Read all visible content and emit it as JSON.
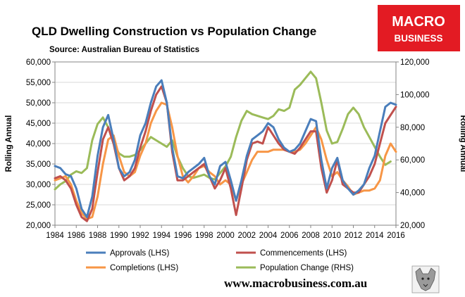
{
  "title": "QLD Dwelling Construction vs Population Change",
  "source": "Source: Australian Bureau of Statistics",
  "logo": {
    "line1": "MACRO",
    "line2": "BUSINESS",
    "color": "#e31b23"
  },
  "website": "www.macrobusiness.com.au",
  "mascot_icon": "wolf-icon",
  "chart_data": {
    "type": "line",
    "x_label": "",
    "x_ticks": [
      "1984",
      "1986",
      "1988",
      "1990",
      "1992",
      "1994",
      "1996",
      "1998",
      "2000",
      "2002",
      "2004",
      "2006",
      "2008",
      "2010",
      "2012",
      "2014",
      "2016"
    ],
    "xlim": [
      1984,
      2016
    ],
    "y_left": {
      "label": "Rolling Annual",
      "lim": [
        20000,
        60000
      ],
      "ticks": [
        "20,000",
        "25,000",
        "30,000",
        "35,000",
        "40,000",
        "45,000",
        "50,000",
        "55,000",
        "60,000"
      ]
    },
    "y_right": {
      "label": "Rolling Annual",
      "lim": [
        20000,
        120000
      ],
      "ticks": [
        "20,000",
        "40,000",
        "60,000",
        "80,000",
        "100,000",
        "120,000"
      ]
    },
    "grid": "horizontal",
    "legend_position": "bottom",
    "series": [
      {
        "name": "Approvals (LHS)",
        "axis": "left",
        "color": "#4a7ebb",
        "x": [
          1984,
          1984.5,
          1985,
          1985.5,
          1986,
          1986.5,
          1987,
          1987.5,
          1988,
          1988.5,
          1989,
          1989.5,
          1990,
          1990.5,
          1991,
          1991.5,
          1992,
          1992.5,
          1993,
          1993.5,
          1994,
          1994.5,
          1995,
          1995.5,
          1996,
          1996.5,
          1997,
          1997.5,
          1998,
          1998.5,
          1999,
          1999.5,
          2000,
          2000.5,
          2001,
          2001.5,
          2002,
          2002.5,
          2003,
          2003.5,
          2004,
          2004.5,
          2005,
          2005.5,
          2006,
          2006.5,
          2007,
          2007.5,
          2008,
          2008.5,
          2009,
          2009.5,
          2010,
          2010.5,
          2011,
          2011.5,
          2012,
          2012.5,
          2013,
          2013.5,
          2014,
          2014.5,
          2015,
          2015.5,
          2016
        ],
        "y": [
          34500,
          34000,
          32500,
          32000,
          29000,
          24000,
          22000,
          27000,
          37000,
          44000,
          47000,
          41000,
          34000,
          32000,
          33000,
          36000,
          42000,
          45000,
          50000,
          54000,
          55500,
          50000,
          39000,
          32000,
          31500,
          33000,
          34000,
          35000,
          36500,
          32000,
          30000,
          34500,
          35500,
          31000,
          26000,
          31000,
          37000,
          41000,
          42000,
          43000,
          45000,
          44000,
          41000,
          39000,
          38000,
          38500,
          40000,
          43000,
          46000,
          45500,
          36000,
          29000,
          34000,
          36500,
          31000,
          29000,
          27500,
          28500,
          30000,
          34000,
          37000,
          43000,
          49000,
          50000,
          49500
        ]
      },
      {
        "name": "Commencements (LHS)",
        "axis": "left",
        "color": "#c0504d",
        "x": [
          1984,
          1984.5,
          1985,
          1985.5,
          1986,
          1986.5,
          1987,
          1987.5,
          1988,
          1988.5,
          1989,
          1989.5,
          1990,
          1990.5,
          1991,
          1991.5,
          1992,
          1992.5,
          1993,
          1993.5,
          1994,
          1994.5,
          1995,
          1995.5,
          1996,
          1996.5,
          1997,
          1997.5,
          1998,
          1998.5,
          1999,
          1999.5,
          2000,
          2000.5,
          2001,
          2001.5,
          2002,
          2002.5,
          2003,
          2003.5,
          2004,
          2004.5,
          2005,
          2005.5,
          2006,
          2006.5,
          2007,
          2007.5,
          2008,
          2008.5,
          2009,
          2009.5,
          2010,
          2010.5,
          2011,
          2011.5,
          2012,
          2012.5,
          2013,
          2013.5,
          2014,
          2014.5,
          2015,
          2015.5,
          2016
        ],
        "y": [
          31500,
          32000,
          31000,
          29000,
          25000,
          22000,
          21000,
          24000,
          33000,
          41000,
          44000,
          40000,
          34000,
          31000,
          32000,
          34000,
          39000,
          43000,
          48000,
          52000,
          54000,
          50000,
          38000,
          31000,
          31000,
          32000,
          33000,
          34000,
          35000,
          32000,
          29000,
          31000,
          34000,
          29000,
          22500,
          29000,
          36000,
          40000,
          40500,
          40000,
          44000,
          42000,
          40000,
          38500,
          38000,
          37500,
          39000,
          41000,
          43000,
          43000,
          34000,
          28000,
          31000,
          36000,
          30000,
          29000,
          28000,
          28000,
          30000,
          32000,
          35000,
          40000,
          45000,
          47000,
          49000
        ]
      },
      {
        "name": "Completions (LHS)",
        "axis": "left",
        "color": "#f79646",
        "x": [
          1984,
          1984.5,
          1985,
          1985.5,
          1986,
          1986.5,
          1987,
          1987.5,
          1988,
          1988.5,
          1989,
          1989.5,
          1990,
          1990.5,
          1991,
          1991.5,
          1992,
          1992.5,
          1993,
          1993.5,
          1994,
          1994.5,
          1995,
          1995.5,
          1996,
          1996.5,
          1997,
          1997.5,
          1998,
          1998.5,
          1999,
          1999.5,
          2000,
          2000.5,
          2001,
          2001.5,
          2002,
          2002.5,
          2003,
          2003.5,
          2004,
          2004.5,
          2005,
          2005.5,
          2006,
          2006.5,
          2007,
          2007.5,
          2008,
          2008.5,
          2009,
          2009.5,
          2010,
          2010.5,
          2011,
          2011.5,
          2012,
          2012.5,
          2013,
          2013.5,
          2014,
          2014.5,
          2015,
          2015.5,
          2016
        ],
        "y": [
          31000,
          31500,
          32000,
          30000,
          26000,
          23000,
          21500,
          22000,
          27000,
          35000,
          41000,
          42000,
          37000,
          33000,
          32000,
          33000,
          37000,
          40000,
          45000,
          48000,
          50000,
          49500,
          44000,
          37000,
          32000,
          30500,
          32000,
          34000,
          34500,
          33000,
          32000,
          30000,
          31000,
          30000,
          26000,
          30000,
          33000,
          36000,
          38000,
          38000,
          38000,
          38500,
          38500,
          38500,
          38000,
          38000,
          38500,
          40000,
          42000,
          44000,
          41000,
          36000,
          32000,
          33000,
          31000,
          29500,
          27500,
          28000,
          28500,
          28500,
          29000,
          31000,
          37000,
          40000,
          38000
        ]
      },
      {
        "name": "Population Change (RHS)",
        "axis": "right",
        "color": "#9bbb59",
        "x": [
          1984,
          1984.5,
          1985,
          1985.5,
          1986,
          1986.5,
          1987,
          1987.5,
          1988,
          1988.5,
          1989,
          1989.5,
          1990,
          1990.5,
          1991,
          1991.5,
          1992,
          1992.5,
          1993,
          1993.5,
          1994,
          1994.5,
          1995,
          1995.5,
          1996,
          1996.5,
          1997,
          1997.5,
          1998,
          1998.5,
          1999,
          1999.5,
          2000,
          2000.5,
          2001,
          2001.5,
          2002,
          2002.5,
          2003,
          2003.5,
          2004,
          2004.5,
          2005,
          2005.5,
          2006,
          2006.5,
          2007,
          2007.5,
          2008,
          2008.5,
          2009,
          2009.5,
          2010,
          2010.5,
          2011,
          2011.5,
          2012,
          2012.5,
          2013,
          2013.5,
          2014,
          2014.5,
          2015,
          2015.5
        ],
        "y": [
          42000,
          45000,
          47000,
          51000,
          53000,
          52000,
          55000,
          72000,
          82000,
          86000,
          80000,
          70000,
          64000,
          62000,
          62000,
          63000,
          66000,
          70000,
          74000,
          72000,
          70000,
          68000,
          72000,
          62000,
          55000,
          50000,
          49000,
          50000,
          51000,
          49000,
          48000,
          52000,
          56000,
          62000,
          74000,
          84000,
          90000,
          88000,
          87000,
          86000,
          85000,
          87000,
          91000,
          90000,
          92000,
          103000,
          106000,
          110000,
          114000,
          110000,
          95000,
          78000,
          70000,
          71000,
          79000,
          88000,
          92000,
          88000,
          80000,
          74000,
          68000,
          62000,
          57000,
          59000
        ]
      }
    ]
  }
}
